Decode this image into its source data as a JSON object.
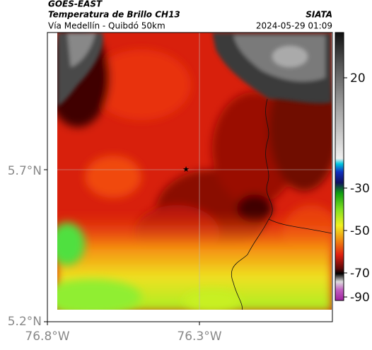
{
  "header": {
    "source": "GOES-EAST",
    "title": "Temperatura de Brillo CH13",
    "subtitle": "Vía Medellín - Quibdó 50km",
    "agency": "SIATA",
    "timestamp": "2024-05-29 01:09"
  },
  "map": {
    "x_labels": [
      "76.8°W",
      "76.3°W"
    ],
    "y_labels": [
      "5.7°N",
      "5.2°N"
    ]
  },
  "colorbar": {
    "labels": [
      "20",
      "-30",
      "-50",
      "-70",
      "-90"
    ]
  }
}
